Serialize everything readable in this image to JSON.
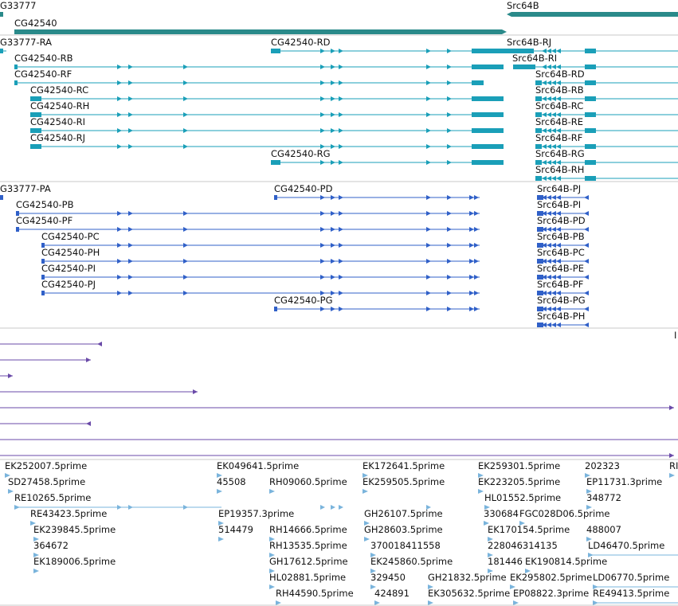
{
  "colors": {
    "gene": "#2a8a8a",
    "transcript": "#1a9fb8",
    "cds": "#3060c8",
    "track": "#6a4aa8",
    "est": "#7ab4dc",
    "divider": "#c8c8c8"
  },
  "genes": [
    {
      "id": "gene-cg33777",
      "label": "G33777"
    },
    {
      "id": "gene-cg42540",
      "label": "CG42540"
    },
    {
      "id": "gene-src64b",
      "label": "Src64B"
    }
  ],
  "transcripts": [
    {
      "id": "CG33777-RA",
      "label": "G33777-RA"
    },
    {
      "id": "CG42540-RB",
      "label": "CG42540-RB"
    },
    {
      "id": "CG42540-RF",
      "label": "CG42540-RF"
    },
    {
      "id": "CG42540-RC",
      "label": "CG42540-RC"
    },
    {
      "id": "CG42540-RH",
      "label": "CG42540-RH"
    },
    {
      "id": "CG42540-RI",
      "label": "CG42540-RI"
    },
    {
      "id": "CG42540-RJ",
      "label": "CG42540-RJ"
    },
    {
      "id": "CG42540-RD",
      "label": "CG42540-RD"
    },
    {
      "id": "CG42540-RG",
      "label": "CG42540-RG"
    },
    {
      "id": "Src64B-RJ",
      "label": "Src64B-RJ"
    },
    {
      "id": "Src64B-RI",
      "label": "Src64B-RI"
    },
    {
      "id": "Src64B-RD",
      "label": "Src64B-RD"
    },
    {
      "id": "Src64B-RB",
      "label": "Src64B-RB"
    },
    {
      "id": "Src64B-RC",
      "label": "Src64B-RC"
    },
    {
      "id": "Src64B-RE",
      "label": "Src64B-RE"
    },
    {
      "id": "Src64B-RF",
      "label": "Src64B-RF"
    },
    {
      "id": "Src64B-RG",
      "label": "Src64B-RG"
    },
    {
      "id": "Src64B-RH",
      "label": "Src64B-RH"
    }
  ],
  "proteins": [
    {
      "id": "CG33777-PA",
      "label": "G33777-PA"
    },
    {
      "id": "CG42540-PB",
      "label": "CG42540-PB"
    },
    {
      "id": "CG42540-PF",
      "label": "CG42540-PF"
    },
    {
      "id": "CG42540-PC",
      "label": "CG42540-PC"
    },
    {
      "id": "CG42540-PH",
      "label": "CG42540-PH"
    },
    {
      "id": "CG42540-PI",
      "label": "CG42540-PI"
    },
    {
      "id": "CG42540-PJ",
      "label": "CG42540-PJ"
    },
    {
      "id": "CG42540-PD",
      "label": "CG42540-PD"
    },
    {
      "id": "CG42540-PG",
      "label": "CG42540-PG"
    },
    {
      "id": "Src64B-PJ",
      "label": "Src64B-PJ"
    },
    {
      "id": "Src64B-PI",
      "label": "Src64B-PI"
    },
    {
      "id": "Src64B-PD",
      "label": "Src64B-PD"
    },
    {
      "id": "Src64B-PB",
      "label": "Src64B-PB"
    },
    {
      "id": "Src64B-PC",
      "label": "Src64B-PC"
    },
    {
      "id": "Src64B-PE",
      "label": "Src64B-PE"
    },
    {
      "id": "Src64B-PF",
      "label": "Src64B-PF"
    },
    {
      "id": "Src64B-PG",
      "label": "Src64B-PG"
    },
    {
      "id": "Src64B-PH",
      "label": "Src64B-PH"
    }
  ],
  "ests": [
    {
      "id": "est-1",
      "label": "EK252007.5prime"
    },
    {
      "id": "est-2",
      "label": "SD27458.5prime"
    },
    {
      "id": "est-3",
      "label": "RE10265.5prime"
    },
    {
      "id": "est-4",
      "label": "RE43423.5prime"
    },
    {
      "id": "est-5",
      "label": "EK239845.5prime"
    },
    {
      "id": "est-6",
      "label": "364672"
    },
    {
      "id": "est-7",
      "label": "EK189006.5prime"
    },
    {
      "id": "est-8",
      "label": "EK049641.5prime"
    },
    {
      "id": "est-9",
      "label": "45508"
    },
    {
      "id": "est-10",
      "label": "RH09060.5prime"
    },
    {
      "id": "est-11",
      "label": "EP19357.3prime"
    },
    {
      "id": "est-12",
      "label": "514479"
    },
    {
      "id": "est-13",
      "label": "RH14666.5prime"
    },
    {
      "id": "est-14",
      "label": "RH13535.5prime"
    },
    {
      "id": "est-15",
      "label": "GH17612.5prime"
    },
    {
      "id": "est-16",
      "label": "HL02881.5prime"
    },
    {
      "id": "est-17",
      "label": "RH44590.5prime"
    },
    {
      "id": "est-18",
      "label": "EK172641.5prime"
    },
    {
      "id": "est-19",
      "label": "EK259505.5prime"
    },
    {
      "id": "est-20",
      "label": "GH26107.5prime"
    },
    {
      "id": "est-21",
      "label": "GH28603.5prime"
    },
    {
      "id": "est-22",
      "label": "370018411558"
    },
    {
      "id": "est-23",
      "label": "EK245860.5prime"
    },
    {
      "id": "est-24",
      "label": "329450"
    },
    {
      "id": "est-25",
      "label": "424891"
    },
    {
      "id": "est-26",
      "label": "GH21832.5prime"
    },
    {
      "id": "est-27",
      "label": "EK305632.5prime"
    },
    {
      "id": "est-28",
      "label": "EK259301.5prime"
    },
    {
      "id": "est-29",
      "label": "EK223205.5prime"
    },
    {
      "id": "est-30",
      "label": "HL01552.5prime"
    },
    {
      "id": "est-31",
      "label": "330684"
    },
    {
      "id": "est-32",
      "label": "FGC028D06.5prime"
    },
    {
      "id": "est-33",
      "label": "EK170154.5prime"
    },
    {
      "id": "est-34",
      "label": "228046314135"
    },
    {
      "id": "est-35",
      "label": "181446"
    },
    {
      "id": "est-36",
      "label": "EK190814.5prime"
    },
    {
      "id": "est-37",
      "label": "EK295802.5prime"
    },
    {
      "id": "est-38",
      "label": "EP08822.3prime"
    },
    {
      "id": "est-39",
      "label": "202323"
    },
    {
      "id": "est-40",
      "label": "EP11731.3prime"
    },
    {
      "id": "est-41",
      "label": "348772"
    },
    {
      "id": "est-42",
      "label": "488007"
    },
    {
      "id": "est-43",
      "label": "LD46470.5prime"
    },
    {
      "id": "est-44",
      "label": "LD06770.5prime"
    },
    {
      "id": "est-45",
      "label": "RE49413.5prime"
    },
    {
      "id": "est-46",
      "label": "RI"
    },
    {
      "id": "est-47",
      "label": "I"
    }
  ]
}
